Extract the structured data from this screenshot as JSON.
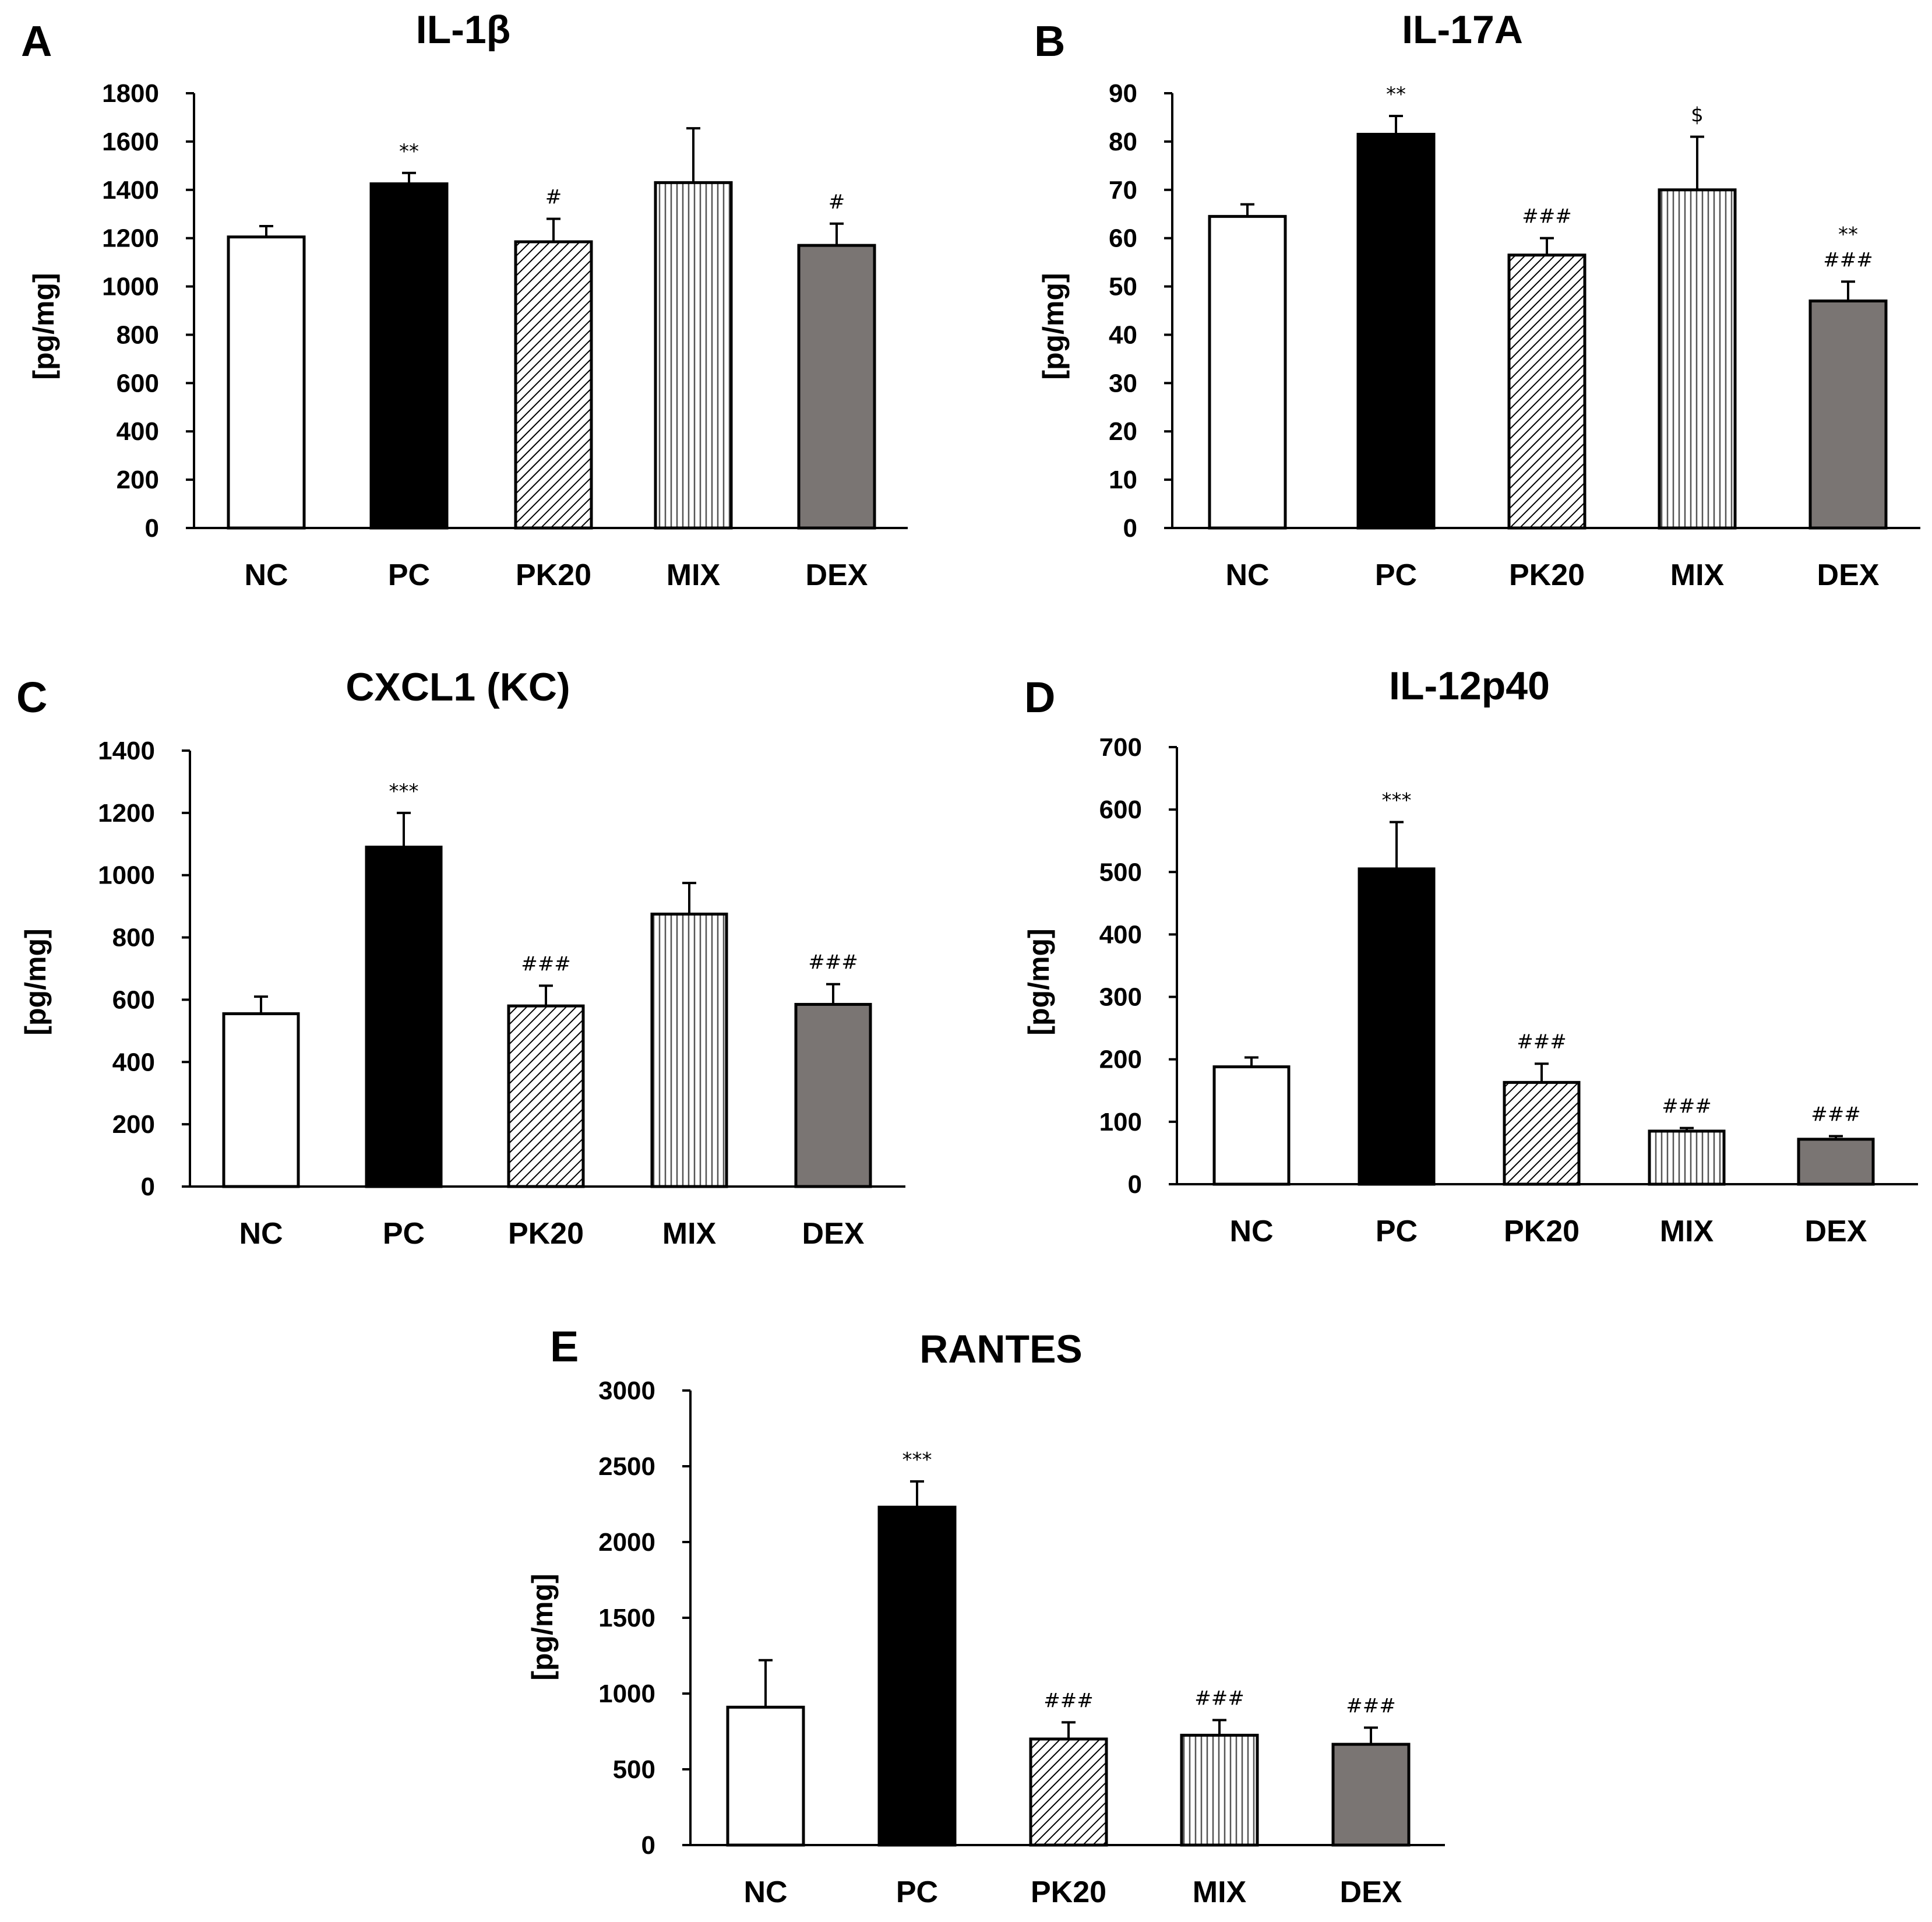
{
  "figure_fill_colors": {
    "white": "#ffffff",
    "black": "#000000",
    "gray": "#7a7573"
  },
  "chart_data": [
    {
      "type": "bar",
      "panel": "A",
      "title": "IL-1β",
      "ylabel": "[pg/mg]",
      "xlabel": "",
      "categories": [
        "NC",
        "PC",
        "PK20",
        "MIX",
        "DEX"
      ],
      "values": [
        1205,
        1425,
        1185,
        1430,
        1170
      ],
      "errors": [
        45,
        45,
        95,
        225,
        90
      ],
      "significance": [
        "",
        "**",
        "#",
        "",
        "#"
      ],
      "fills": [
        "white",
        "black",
        "diag",
        "vert",
        "gray"
      ],
      "ylim": [
        0,
        1800
      ],
      "yticks": [
        "0",
        "200",
        "400",
        "600",
        "800",
        "1000",
        "1200",
        "1400",
        "1600",
        "1800"
      ]
    },
    {
      "type": "bar",
      "panel": "B",
      "title": "IL-17A",
      "ylabel": "[pg/mg]",
      "xlabel": "",
      "categories": [
        "NC",
        "PC",
        "PK20",
        "MIX",
        "DEX"
      ],
      "values": [
        64.5,
        81.5,
        56.5,
        70,
        47
      ],
      "errors": [
        2.5,
        3.8,
        3.5,
        11,
        4
      ],
      "significance": [
        "",
        "**",
        "###",
        "$",
        "**\n###"
      ],
      "fills": [
        "white",
        "black",
        "diag",
        "vert",
        "gray"
      ],
      "ylim": [
        0,
        90
      ],
      "yticks": [
        "0",
        "10",
        "20",
        "30",
        "40",
        "50",
        "60",
        "70",
        "80",
        "90"
      ]
    },
    {
      "type": "bar",
      "panel": "C",
      "title": "CXCL1 (KC)",
      "ylabel": "[pg/mg]",
      "xlabel": "",
      "categories": [
        "NC",
        "PC",
        "PK20",
        "MIX",
        "DEX"
      ],
      "values": [
        555,
        1090,
        580,
        875,
        585
      ],
      "errors": [
        55,
        110,
        65,
        100,
        65
      ],
      "significance": [
        "",
        "***",
        "###",
        "",
        "###"
      ],
      "fills": [
        "white",
        "black",
        "diag",
        "vert",
        "gray"
      ],
      "ylim": [
        0,
        1400
      ],
      "yticks": [
        "0",
        "200",
        "400",
        "600",
        "800",
        "1000",
        "1200",
        "1400"
      ]
    },
    {
      "type": "bar",
      "panel": "D",
      "title": "IL-12p40",
      "ylabel": "[pg/mg]",
      "xlabel": "",
      "categories": [
        "NC",
        "PC",
        "PK20",
        "MIX",
        "DEX"
      ],
      "values": [
        188,
        505,
        163,
        85,
        72
      ],
      "errors": [
        15,
        75,
        30,
        5,
        5
      ],
      "significance": [
        "",
        "***",
        "###",
        "###",
        "###"
      ],
      "fills": [
        "white",
        "black",
        "diag",
        "vert",
        "gray"
      ],
      "ylim": [
        0,
        700
      ],
      "yticks": [
        "0",
        "100",
        "200",
        "300",
        "400",
        "500",
        "600",
        "700"
      ]
    },
    {
      "type": "bar",
      "panel": "E",
      "title": "RANTES",
      "ylabel": "[pg/mg]",
      "xlabel": "",
      "categories": [
        "NC",
        "PC",
        "PK20",
        "MIX",
        "DEX"
      ],
      "values": [
        910,
        2230,
        700,
        725,
        665
      ],
      "errors": [
        310,
        170,
        110,
        100,
        110
      ],
      "significance": [
        "",
        "***",
        "###",
        "###",
        "###"
      ],
      "fills": [
        "white",
        "black",
        "diag",
        "vert",
        "gray"
      ],
      "ylim": [
        0,
        3000
      ],
      "yticks": [
        "0",
        "500",
        "1000",
        "1500",
        "2000",
        "2500",
        "3000"
      ]
    }
  ]
}
